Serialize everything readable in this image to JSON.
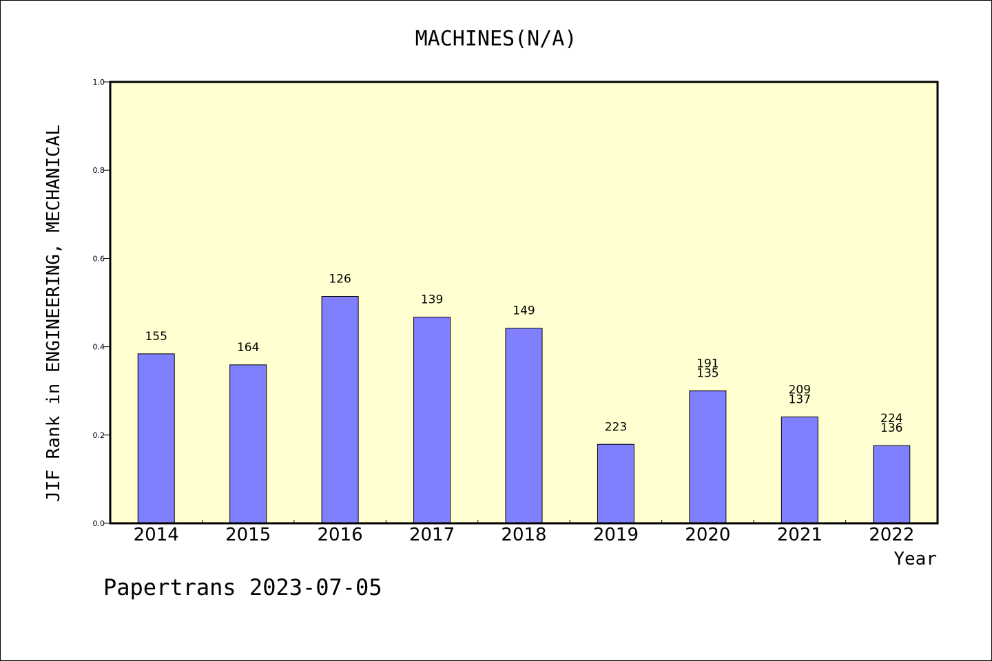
{
  "footer": {
    "credit": "Papertrans 2023-07-05"
  },
  "chart_data": {
    "type": "bar",
    "title": "MACHINES(N/A)",
    "xlabel": "Year",
    "ylabel": "JIF Rank in ENGINEERING, MECHANICAL",
    "ylim": [
      0,
      1.0
    ],
    "yticks": [
      "0.0",
      "0.2",
      "0.4",
      "0.6",
      "0.8",
      "1.0"
    ],
    "grid": false,
    "colors": {
      "bar": "#8080ff",
      "plot_bg": "#ffffd2",
      "axis": "#000000"
    },
    "categories": [
      "2014",
      "2015",
      "2016",
      "2017",
      "2018",
      "2019",
      "2020",
      "2021",
      "2022"
    ],
    "values": [
      0.384,
      0.359,
      0.514,
      0.467,
      0.442,
      0.179,
      0.3,
      0.241,
      0.176
    ],
    "labels": [
      [
        "155"
      ],
      [
        "164"
      ],
      [
        "126"
      ],
      [
        "139"
      ],
      [
        "149"
      ],
      [
        "223"
      ],
      [
        "191",
        "135"
      ],
      [
        "209",
        "137"
      ],
      [
        "224",
        "136"
      ]
    ]
  }
}
